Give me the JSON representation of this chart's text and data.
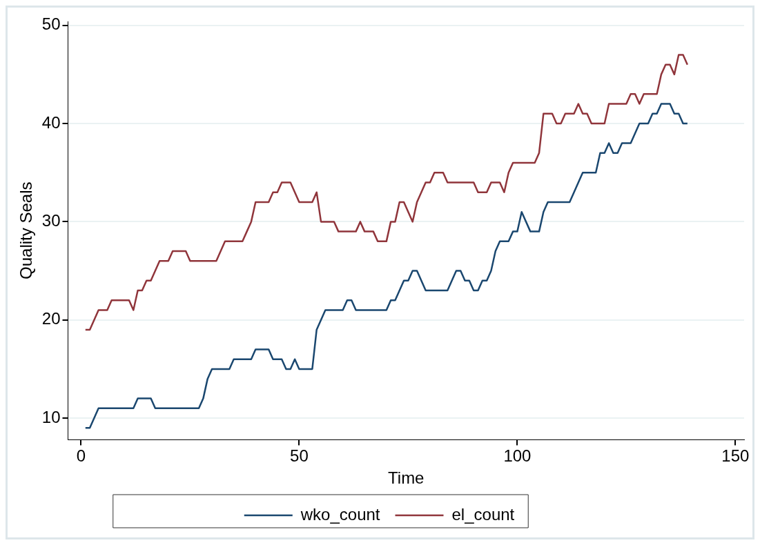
{
  "chart_data": {
    "type": "line",
    "xlabel": "Time",
    "ylabel": "Quality Seals",
    "xlim": [
      -3,
      152
    ],
    "xticks": [
      0,
      50,
      100,
      150
    ],
    "ylim": [
      7.8,
      50.4
    ],
    "yticks": [
      10,
      20,
      30,
      40,
      50
    ],
    "grid": "y",
    "legend": "bottom",
    "marker": "none",
    "line_style": "solid",
    "series": [
      {
        "name": "wko_count",
        "color": "#1a476f",
        "x": [
          1,
          2,
          4,
          12,
          13,
          16,
          17,
          27,
          28,
          29,
          30,
          34,
          35,
          39,
          40,
          43,
          44,
          46,
          47,
          48,
          49,
          50,
          53,
          54,
          55,
          56,
          60,
          61,
          62,
          63,
          70,
          71,
          72,
          73,
          74,
          75,
          76,
          77,
          79,
          84,
          86,
          87,
          88,
          89,
          90,
          91,
          92,
          93,
          94,
          95,
          96,
          98,
          99,
          100,
          101,
          103,
          105,
          106,
          107,
          112,
          113,
          115,
          118,
          119,
          120,
          121,
          122,
          123,
          124,
          126,
          128,
          130,
          131,
          132,
          133,
          135,
          136,
          137,
          138,
          139
        ],
        "values": [
          9,
          9,
          11,
          11,
          12,
          12,
          11,
          11,
          12,
          14,
          15,
          15,
          16,
          16,
          17,
          17,
          16,
          16,
          15,
          15,
          16,
          15,
          15,
          19,
          20,
          21,
          21,
          22,
          22,
          21,
          21,
          22,
          22,
          23,
          24,
          24,
          25,
          25,
          23,
          23,
          25,
          25,
          24,
          24,
          23,
          23,
          24,
          24,
          25,
          27,
          28,
          28,
          29,
          29,
          31,
          29,
          29,
          31,
          32,
          32,
          33,
          35,
          35,
          37,
          37,
          38,
          37,
          37,
          38,
          38,
          40,
          40,
          41,
          41,
          42,
          42,
          41,
          41,
          40,
          40
        ]
      },
      {
        "name": "el_count",
        "color": "#90353b",
        "x": [
          1,
          2,
          4,
          6,
          7,
          11,
          12,
          13,
          14,
          15,
          16,
          17,
          18,
          20,
          21,
          24,
          25,
          31,
          33,
          37,
          38,
          39,
          40,
          43,
          44,
          45,
          46,
          48,
          49,
          50,
          53,
          54,
          55,
          58,
          59,
          63,
          64,
          65,
          67,
          68,
          70,
          71,
          72,
          73,
          74,
          76,
          77,
          78,
          79,
          80,
          81,
          83,
          84,
          90,
          91,
          93,
          94,
          96,
          97,
          98,
          99,
          104,
          105,
          106,
          108,
          109,
          110,
          111,
          113,
          114,
          115,
          116,
          117,
          120,
          121,
          125,
          126,
          127,
          128,
          129,
          132,
          133,
          134,
          135,
          136,
          137,
          138,
          139
        ],
        "values": [
          19,
          19,
          21,
          21,
          22,
          22,
          21,
          23,
          23,
          24,
          24,
          25,
          26,
          26,
          27,
          27,
          26,
          26,
          28,
          28,
          29,
          30,
          32,
          32,
          33,
          33,
          34,
          34,
          33,
          32,
          32,
          33,
          30,
          30,
          29,
          29,
          30,
          29,
          29,
          28,
          28,
          30,
          30,
          32,
          32,
          30,
          32,
          33,
          34,
          34,
          35,
          35,
          34,
          34,
          33,
          33,
          34,
          34,
          33,
          35,
          36,
          36,
          37,
          41,
          41,
          40,
          40,
          41,
          41,
          42,
          41,
          41,
          40,
          40,
          42,
          42,
          43,
          43,
          42,
          43,
          43,
          45,
          46,
          46,
          45,
          47,
          47,
          46
        ]
      }
    ]
  }
}
